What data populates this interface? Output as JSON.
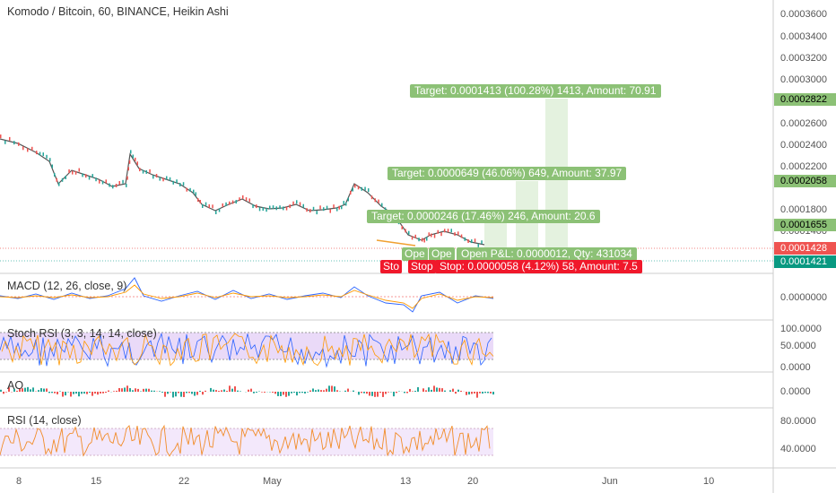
{
  "chart_title": "Komodo / Bitcoin, 60, BINANCE, Heikin Ashi",
  "price_axis": [
    "0.0003600",
    "0.0003400",
    "0.0003200",
    "0.0003000",
    "0.0002600",
    "0.0002400",
    "0.0002200",
    "0.0001800",
    "0.0001400",
    "0.0001600"
  ],
  "price_tags": [
    {
      "value": "0.0002822",
      "bg": "#8cc176",
      "fg": "#000000"
    },
    {
      "value": "0.0002058",
      "bg": "#8cc176",
      "fg": "#000000"
    },
    {
      "value": "0.0001655",
      "bg": "#8cc176",
      "fg": "#000000"
    },
    {
      "value": "0.0001428",
      "bg": "#ef5350",
      "fg": "#ffffff"
    },
    {
      "value": "0.0001421",
      "bg": "#089981",
      "fg": "#ffffff"
    }
  ],
  "targets": [
    "Target: 0.0001413 (100.28%) 1413, Amount: 70.91",
    "Target: 0.0000649 (46.06%) 649, Amount: 37.97",
    "Target: 0.0000246 (17.46%) 246, Amount: 20.6"
  ],
  "open_labels": [
    "Ope",
    "Ope",
    "Open P&L: 0.0000012, Qty: 431034"
  ],
  "stop_labels": [
    "Sto",
    "Stop",
    "Stop: 0.0000058 (4.12%) 58, Amount: 7.5"
  ],
  "indicators": {
    "macd": {
      "label": "MACD (12, 26, close, 9)",
      "axis": [
        "0.0000000"
      ]
    },
    "stoch": {
      "label": "Stoch RSI (3, 3, 14, 14, close)",
      "axis": [
        "100.0000",
        "50.0000",
        "0.0000"
      ]
    },
    "ao": {
      "label": "AO",
      "axis": [
        "0.0000"
      ]
    },
    "rsi": {
      "label": "RSI (14, close)",
      "axis": [
        "80.0000",
        "40.0000"
      ]
    }
  },
  "date_axis": [
    "8",
    "15",
    "22",
    "May",
    "13",
    "20",
    "Jun",
    "10"
  ],
  "colors": {
    "up": "#26a69a",
    "down": "#ef5350",
    "target_green": "#8cc176",
    "stop_red": "#f0182b",
    "stoch_band": "#e8d6f7",
    "rsi_band": "#f3e8fb"
  }
}
